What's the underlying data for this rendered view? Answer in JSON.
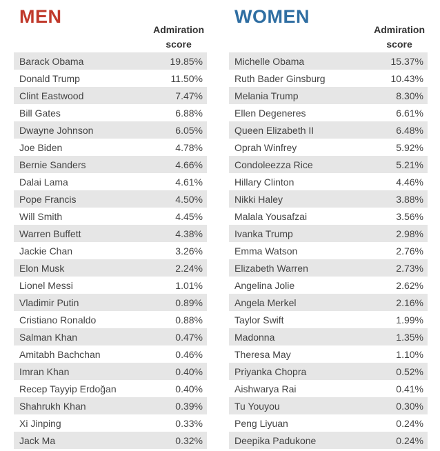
{
  "colors": {
    "men": "#c0392b",
    "women": "#2f6ea2"
  },
  "men": {
    "title": "MEN",
    "column_header_line1": "Admiration",
    "column_header_line2": "score"
  },
  "women": {
    "title": "WOMEN",
    "column_header_line1": "Admiration",
    "column_header_line2": "score"
  },
  "chart_data": [
    {
      "type": "table",
      "title": "MEN",
      "columns": [
        "",
        "Admiration score"
      ],
      "rows": [
        [
          "Barack Obama",
          "19.85%"
        ],
        [
          "Donald Trump",
          "11.50%"
        ],
        [
          "Clint Eastwood",
          "7.47%"
        ],
        [
          "Bill Gates",
          "6.88%"
        ],
        [
          "Dwayne Johnson",
          "6.05%"
        ],
        [
          "Joe Biden",
          "4.78%"
        ],
        [
          "Bernie Sanders",
          "4.66%"
        ],
        [
          "Dalai Lama",
          "4.61%"
        ],
        [
          "Pope Francis",
          "4.50%"
        ],
        [
          "Will Smith",
          "4.45%"
        ],
        [
          "Warren Buffett",
          "4.38%"
        ],
        [
          "Jackie Chan",
          "3.26%"
        ],
        [
          "Elon Musk",
          "2.24%"
        ],
        [
          "Lionel Messi",
          "1.01%"
        ],
        [
          "Vladimir Putin",
          "0.89%"
        ],
        [
          "Cristiano Ronaldo",
          "0.88%"
        ],
        [
          "Salman Khan",
          "0.47%"
        ],
        [
          "Amitabh Bachchan",
          "0.46%"
        ],
        [
          "Imran Khan",
          "0.40%"
        ],
        [
          "Recep Tayyip Erdoğan",
          "0.40%"
        ],
        [
          "Shahrukh Khan",
          "0.39%"
        ],
        [
          "Xi Jinping",
          "0.33%"
        ],
        [
          "Jack Ma",
          "0.32%"
        ]
      ]
    },
    {
      "type": "table",
      "title": "WOMEN",
      "columns": [
        "",
        "Admiration score"
      ],
      "rows": [
        [
          "Michelle Obama",
          "15.37%"
        ],
        [
          "Ruth Bader Ginsburg",
          "10.43%"
        ],
        [
          "Melania Trump",
          "8.30%"
        ],
        [
          "Ellen Degeneres",
          "6.61%"
        ],
        [
          "Queen Elizabeth II",
          "6.48%"
        ],
        [
          "Oprah Winfrey",
          "5.92%"
        ],
        [
          "Condoleezza Rice",
          "5.21%"
        ],
        [
          "Hillary Clinton",
          "4.46%"
        ],
        [
          "Nikki Haley",
          "3.88%"
        ],
        [
          "Malala Yousafzai",
          "3.56%"
        ],
        [
          "Ivanka Trump",
          "2.98%"
        ],
        [
          "Emma Watson",
          "2.76%"
        ],
        [
          "Elizabeth Warren",
          "2.73%"
        ],
        [
          "Angelina Jolie",
          "2.62%"
        ],
        [
          "Angela Merkel",
          "2.16%"
        ],
        [
          "Taylor Swift",
          "1.99%"
        ],
        [
          "Madonna",
          "1.35%"
        ],
        [
          "Theresa May",
          "1.10%"
        ],
        [
          "Priyanka Chopra",
          "0.52%"
        ],
        [
          "Aishwarya Rai",
          "0.41%"
        ],
        [
          "Tu Youyou",
          "0.30%"
        ],
        [
          "Peng Liyuan",
          "0.24%"
        ],
        [
          "Deepika Padukone",
          "0.24%"
        ]
      ]
    }
  ]
}
